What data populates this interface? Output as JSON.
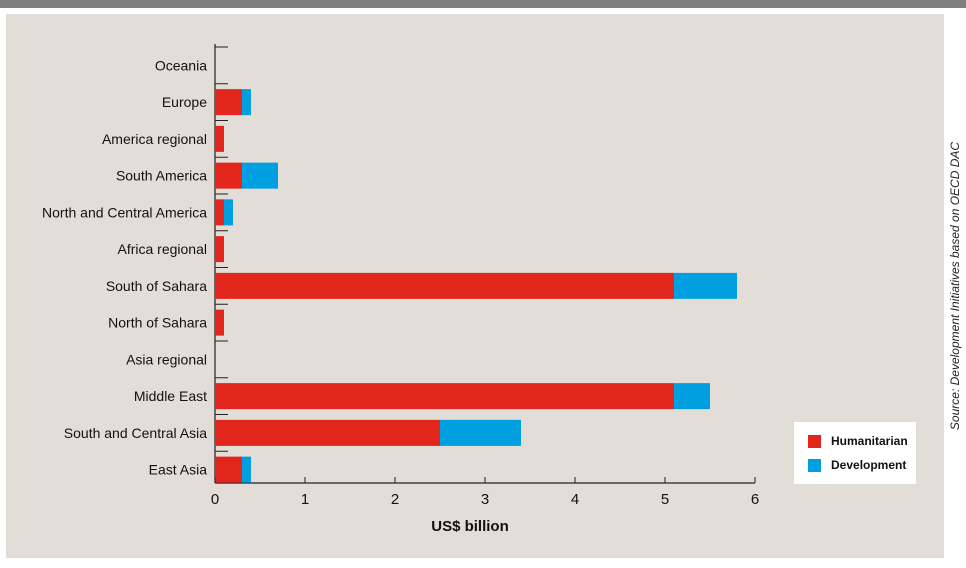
{
  "chart_data": {
    "type": "bar",
    "orientation": "horizontal",
    "stacked": true,
    "categories": [
      "Oceania",
      "Europe",
      "America regional",
      "South America",
      "North and Central America",
      "Africa regional",
      "South of Sahara",
      "North of Sahara",
      "Asia regional",
      "Middle East",
      "South and Central Asia",
      "East Asia"
    ],
    "series": [
      {
        "name": "Humanitarian",
        "color": "#e3261b",
        "values": [
          0,
          0.3,
          0.1,
          0.3,
          0.1,
          0.1,
          5.1,
          0.1,
          0,
          5.1,
          2.5,
          0.3
        ]
      },
      {
        "name": "Development",
        "color": "#00a0e0",
        "values": [
          0,
          0.1,
          0,
          0.4,
          0.1,
          0,
          0.7,
          0,
          0,
          0.4,
          0.9,
          0.1
        ]
      }
    ],
    "xlabel": "US$ billion",
    "xlim": [
      0,
      6
    ],
    "xticks": [
      0,
      1,
      2,
      3,
      4,
      5,
      6
    ],
    "grid": false,
    "legend_position": "bottom-right",
    "source": "Source: Development Initiatives based on OECD DAC"
  }
}
